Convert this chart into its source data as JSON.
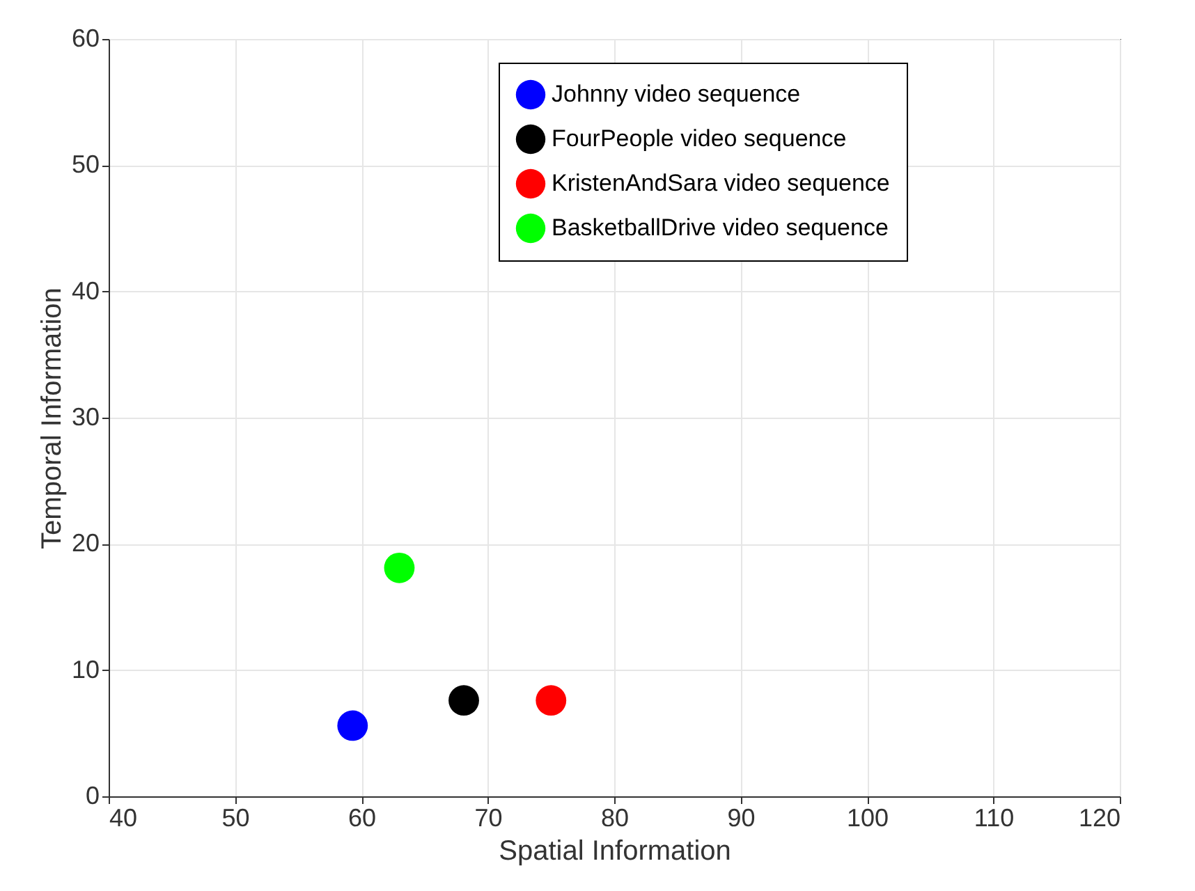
{
  "chart_data": {
    "type": "scatter",
    "xlabel": "Spatial Information",
    "ylabel": "Temporal Information",
    "xlim": [
      40,
      120
    ],
    "xticks": [
      40,
      50,
      60,
      70,
      80,
      90,
      100,
      110,
      120
    ],
    "ylim": [
      0,
      60
    ],
    "yticks": [
      0,
      10,
      20,
      30,
      40,
      50,
      60
    ],
    "grid": true,
    "legend": "top right",
    "marker": "circle",
    "series": [
      {
        "name": "Johnny video sequence",
        "color": "#0000ff",
        "x": [
          59.3
        ],
        "values": [
          5.6
        ]
      },
      {
        "name": "FourPeople video sequence",
        "color": "#000000",
        "x": [
          68.1
        ],
        "values": [
          7.6
        ]
      },
      {
        "name": "KristenAndSara video sequence",
        "color": "#ff0000",
        "x": [
          75.0
        ],
        "values": [
          7.6
        ]
      },
      {
        "name": "BasketballDrive video sequence",
        "color": "#00ff00",
        "x": [
          63.0
        ],
        "values": [
          18.1
        ]
      }
    ]
  }
}
